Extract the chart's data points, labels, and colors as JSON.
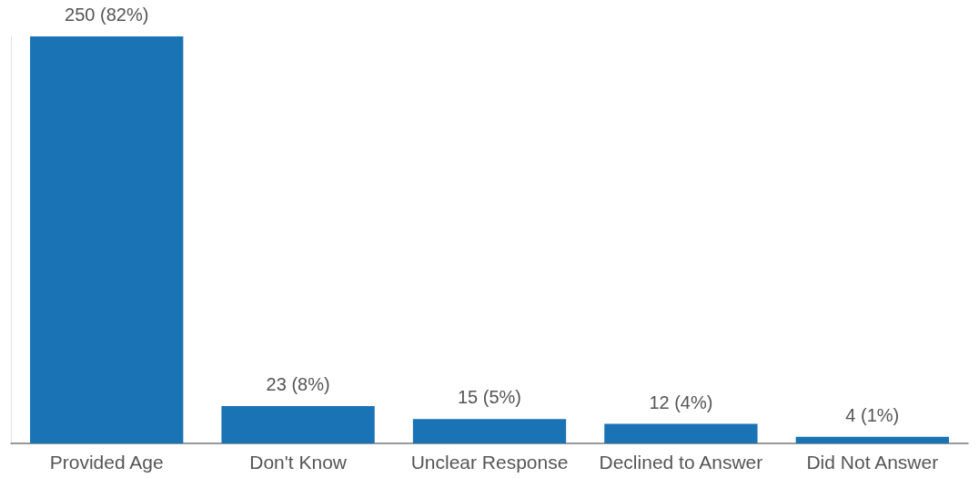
{
  "chart_data": {
    "type": "bar",
    "categories": [
      "Provided Age",
      "Don't Know",
      "Unclear Response",
      "Declined to Answer",
      "Did Not Answer"
    ],
    "values": [
      250,
      23,
      15,
      12,
      4
    ],
    "value_labels": [
      "250 (82%)",
      "23 (8%)",
      "15 (5%)",
      "12 (4%)",
      "4 (1%)"
    ],
    "color": "#1a73b5",
    "grid": false,
    "tick_labels": "x"
  }
}
